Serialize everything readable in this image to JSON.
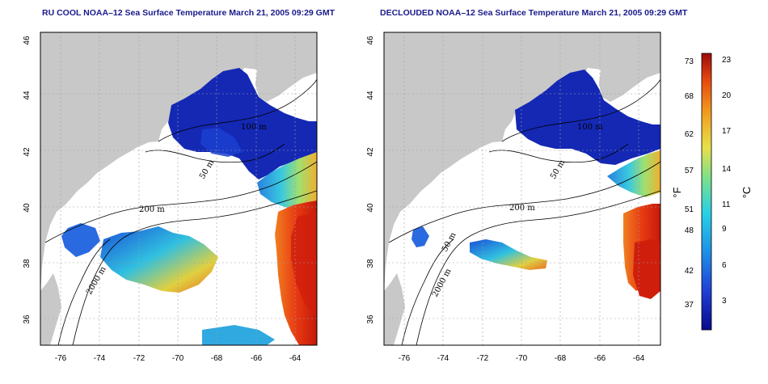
{
  "titles": {
    "left": "RU COOL NOAA–12 Sea Surface Temperature March 21, 2005 09:29 GMT",
    "right": "DECLOUDED NOAA–12 Sea Surface Temperature March 21, 2005 09:29 GMT"
  },
  "axes": {
    "lat_ticks": [
      "46",
      "44",
      "42",
      "40",
      "38",
      "36"
    ],
    "lon_ticks": [
      "-76",
      "-74",
      "-72",
      "-70",
      "-68",
      "-66",
      "-64"
    ],
    "lat_range": [
      35,
      46
    ],
    "lon_range": [
      -77,
      -63
    ]
  },
  "contour_labels": {
    "c100": "100 m",
    "c50": "50 m",
    "c200": "200 m",
    "c2000": "2000 m"
  },
  "colorbar": {
    "f_ticks": [
      "73",
      "68",
      "62",
      "57",
      "51",
      "48",
      "42",
      "37"
    ],
    "c_ticks": [
      "23",
      "20",
      "17",
      "14",
      "11",
      "9",
      "6",
      "3"
    ],
    "f_label": "°F",
    "c_label": "°C",
    "colors": [
      "#0a0a8c",
      "#1f3fd6",
      "#1f8fe6",
      "#27d0e8",
      "#7de08a",
      "#e8e04a",
      "#f0a020",
      "#e84a10",
      "#9c0a0a"
    ]
  },
  "colors": {
    "land": "#c8c8c8",
    "cold": "#1428b4",
    "warm": "#e0401a"
  }
}
